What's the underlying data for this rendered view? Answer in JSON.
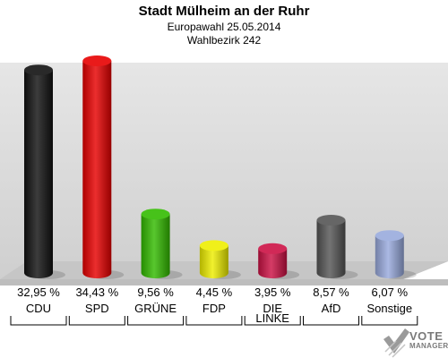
{
  "title": "Stadt Mülheim an der Ruhr",
  "subtitle": "Europawahl 25.05.2014",
  "subtitle2": "Wahlbezirk 242",
  "logo": {
    "line1": "VOTE",
    "line2": "MANAGER"
  },
  "chart_data": {
    "type": "bar",
    "title": "Stadt Mülheim an der Ruhr",
    "subtitle": "Europawahl 25.05.2014 / Wahlbezirk 242",
    "categories": [
      "CDU",
      "SPD",
      "GRÜNE",
      "FDP",
      "DIE LINKE",
      "AfD",
      "Sonstige"
    ],
    "values": [
      32.95,
      34.43,
      9.56,
      4.45,
      3.95,
      8.57,
      6.07
    ],
    "value_labels": [
      "32,95 %",
      "34,43 %",
      "9,56 %",
      "4,45 %",
      "3,95 %",
      "8,57 %",
      "6,07 %"
    ],
    "colors": [
      "#111111",
      "#e60000",
      "#33bb00",
      "#eeee00",
      "#cc1144",
      "#555555",
      "#99aadd"
    ],
    "ylim": [
      0,
      34.43
    ],
    "grid": false,
    "legend": "none"
  }
}
